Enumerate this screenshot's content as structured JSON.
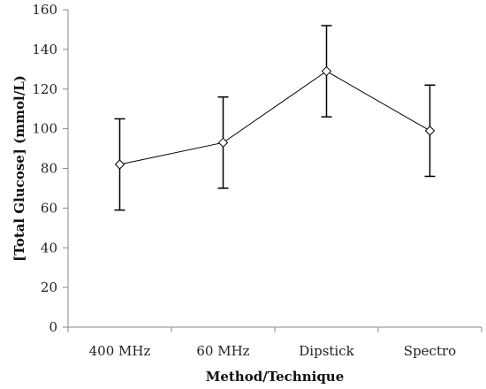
{
  "chart_data": {
    "type": "line",
    "title": "",
    "xlabel": "Method/Technique",
    "ylabel": "[Total Glucose] (mmol/L)",
    "categories": [
      "400 MHz",
      "60 MHz",
      "Dipstick",
      "Spectro"
    ],
    "series": [
      {
        "values": [
          82,
          93,
          129,
          99
        ],
        "error_low": [
          59,
          70,
          106,
          76
        ],
        "error_high": [
          105,
          116,
          152,
          122
        ]
      }
    ],
    "ylim": [
      0,
      160
    ],
    "yticks": [
      "0",
      "20",
      "40",
      "60",
      "80",
      "100",
      "120",
      "140",
      "160"
    ],
    "grid": false,
    "legend": "none",
    "marker": "diamond",
    "colors": {
      "line": "#000000",
      "marker_fill": "#ffffff",
      "axis": "#888888"
    }
  }
}
